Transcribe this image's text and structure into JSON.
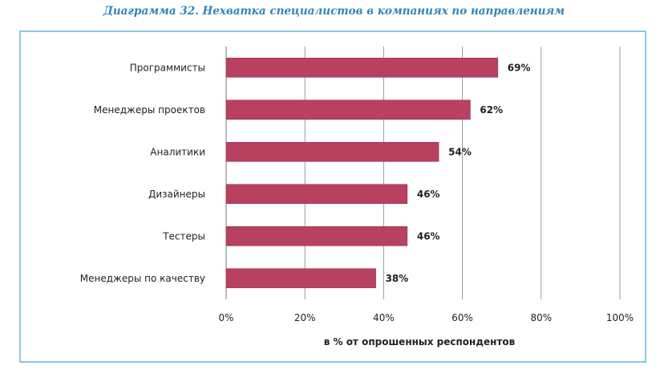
{
  "title": "Диаграмма 32. Нехватка специалистов в компаниях по направлениям",
  "chart_data": {
    "type": "bar",
    "orientation": "horizontal",
    "title": "Диаграмма 32. Нехватка специалистов в компаниях по направлениям",
    "categories": [
      "Программисты",
      "Менеджеры проектов",
      "Аналитики",
      "Дизайнеры",
      "Тестеры",
      "Менеджеры по качеству"
    ],
    "values": [
      69,
      62,
      54,
      46,
      46,
      38
    ],
    "value_labels": [
      "69%",
      "62%",
      "54%",
      "46%",
      "46%",
      "38%"
    ],
    "xlabel": "в % от опрошенных респондентов",
    "ylabel": "",
    "xlim": [
      0,
      100
    ],
    "xticks": [
      0,
      20,
      40,
      60,
      80,
      100
    ],
    "xtick_labels": [
      "0%",
      "20%",
      "40%",
      "60%",
      "80%",
      "100%"
    ],
    "grid": true,
    "bar_color": "#b8415f"
  }
}
